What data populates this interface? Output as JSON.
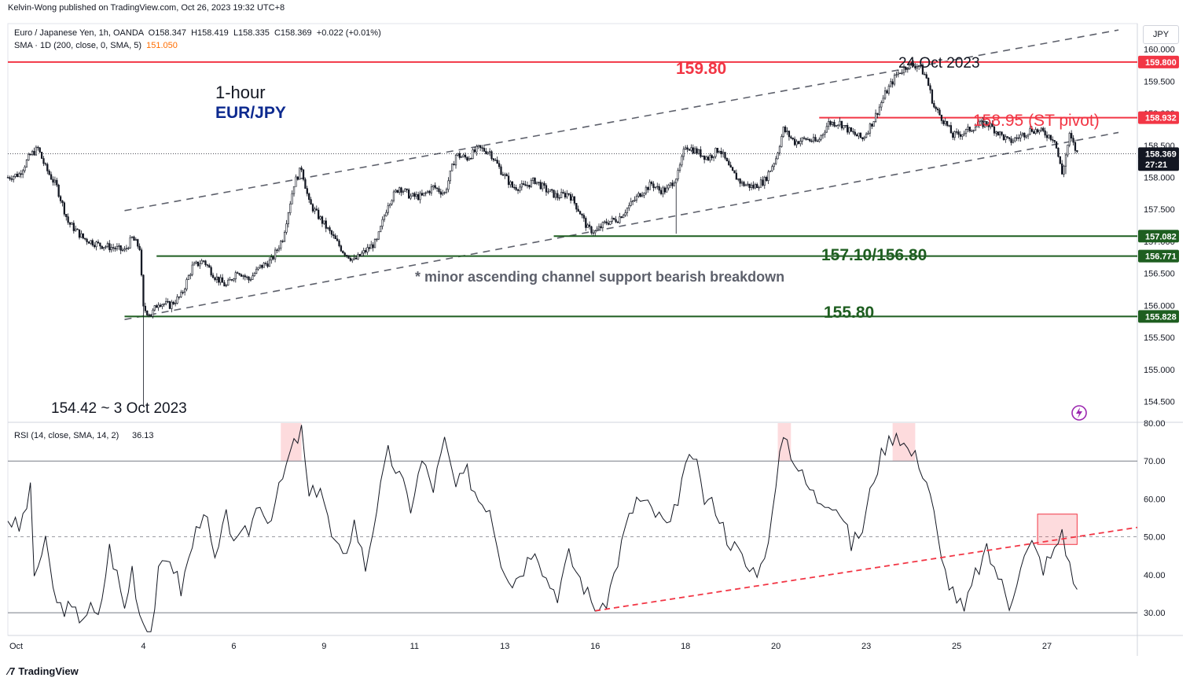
{
  "header": {
    "publisher": "Kelvin-Wong published on TradingView.com, Oct 26, 2023 19:32 UTC+8"
  },
  "legend": {
    "instrument": "Euro / Japanese Yen, 1h, OANDA",
    "open": "O158.347",
    "high": "H158.419",
    "low": "L158.335",
    "close": "C158.369",
    "change": "+0.022 (+0.01%)",
    "sma_label": "SMA · 1D (200, close, 0, SMA, 5)",
    "sma_value": "151.050",
    "rsi_label": "RSI (14, close, SMA, 14, 2)",
    "rsi_value": "36.13"
  },
  "currency": "JPY",
  "footer": {
    "brand": "TradingView"
  },
  "annotations": {
    "timeframe": "1-hour",
    "pair": "EUR/JPY",
    "top_level": "159.80",
    "top_date": "24 Oct 2023",
    "pivot": "158.95 (ST pivot)",
    "support_mid": "157.10/156.80",
    "note": "* minor ascending channel support bearish breakdown",
    "support_low": "155.80",
    "bottom": "154.42 ~ 3 Oct 2023"
  },
  "price_axis": {
    "ticks": [
      "160.000",
      "159.500",
      "159.000",
      "158.500",
      "158.000",
      "157.500",
      "157.000",
      "156.500",
      "156.000",
      "155.500",
      "155.000",
      "154.500"
    ],
    "tick_values": [
      160.0,
      159.5,
      159.0,
      158.5,
      158.0,
      157.5,
      157.0,
      156.5,
      156.0,
      155.5,
      155.0,
      154.5
    ],
    "badges": [
      {
        "label": "159.800",
        "value": 159.8,
        "color": "#f23645"
      },
      {
        "label": "158.932",
        "value": 158.932,
        "color": "#f23645"
      },
      {
        "label": "158.369",
        "value": 158.369,
        "color": "#131722"
      },
      {
        "label": "27:21",
        "value": 158.2,
        "color": "#131722"
      },
      {
        "label": "157.082",
        "value": 157.082,
        "color": "#1e5e20"
      },
      {
        "label": "156.771",
        "value": 156.771,
        "color": "#1e5e20"
      },
      {
        "label": "155.828",
        "value": 155.828,
        "color": "#1e5e20"
      }
    ]
  },
  "rsi_axis": {
    "ticks": [
      "80.00",
      "70.00",
      "60.00",
      "50.00",
      "40.00",
      "30.00"
    ],
    "tick_values": [
      80,
      70,
      60,
      50,
      40,
      30
    ]
  },
  "time_axis": {
    "labels": [
      "Oct",
      "4",
      "6",
      "9",
      "11",
      "13",
      "16",
      "18",
      "20",
      "23",
      "25",
      "27"
    ],
    "hours": [
      0,
      72,
      120,
      168,
      216,
      264,
      312,
      360,
      408,
      456,
      504,
      552
    ]
  },
  "colors": {
    "resistance": "#f23645",
    "support": "#1e5e20",
    "text_blue": "#0d2a8f",
    "channel": "#5d606b",
    "rsi_line": "#131722",
    "rsi_trend": "#f23645"
  },
  "chart_data": {
    "type": "candlestick",
    "symbol": "EUR/JPY",
    "interval": "1h",
    "x_unit": "hours since Oct 2 2023 00:00",
    "price_ylim": [
      154.2,
      160.4
    ],
    "rsi_ylim": [
      24,
      80
    ],
    "close_path": [
      [
        0,
        158.0
      ],
      [
        6,
        158.05
      ],
      [
        12,
        158.35
      ],
      [
        16,
        158.45
      ],
      [
        20,
        158.15
      ],
      [
        26,
        157.85
      ],
      [
        32,
        157.3
      ],
      [
        40,
        157.05
      ],
      [
        48,
        156.95
      ],
      [
        56,
        156.9
      ],
      [
        62,
        156.85
      ],
      [
        66,
        157.05
      ],
      [
        70,
        156.9
      ],
      [
        72,
        155.95
      ],
      [
        76,
        155.85
      ],
      [
        80,
        156.05
      ],
      [
        86,
        156.0
      ],
      [
        92,
        156.15
      ],
      [
        98,
        156.6
      ],
      [
        104,
        156.7
      ],
      [
        110,
        156.45
      ],
      [
        116,
        156.3
      ],
      [
        122,
        156.55
      ],
      [
        128,
        156.4
      ],
      [
        134,
        156.6
      ],
      [
        140,
        156.7
      ],
      [
        146,
        157.05
      ],
      [
        152,
        157.9
      ],
      [
        156,
        158.15
      ],
      [
        160,
        157.6
      ],
      [
        166,
        157.35
      ],
      [
        172,
        157.1
      ],
      [
        178,
        156.85
      ],
      [
        184,
        156.7
      ],
      [
        190,
        156.85
      ],
      [
        196,
        157.0
      ],
      [
        202,
        157.6
      ],
      [
        208,
        157.85
      ],
      [
        214,
        157.7
      ],
      [
        220,
        157.7
      ],
      [
        226,
        157.85
      ],
      [
        232,
        157.75
      ],
      [
        238,
        158.35
      ],
      [
        244,
        158.3
      ],
      [
        250,
        158.45
      ],
      [
        256,
        158.4
      ],
      [
        262,
        158.1
      ],
      [
        268,
        157.85
      ],
      [
        274,
        157.85
      ],
      [
        280,
        157.95
      ],
      [
        286,
        157.8
      ],
      [
        292,
        157.7
      ],
      [
        298,
        157.75
      ],
      [
        304,
        157.45
      ],
      [
        308,
        157.2
      ],
      [
        312,
        157.15
      ],
      [
        318,
        157.3
      ],
      [
        324,
        157.35
      ],
      [
        330,
        157.55
      ],
      [
        336,
        157.75
      ],
      [
        342,
        157.9
      ],
      [
        346,
        157.8
      ],
      [
        350,
        157.8
      ],
      [
        356,
        158.05
      ],
      [
        360,
        158.5
      ],
      [
        366,
        158.4
      ],
      [
        372,
        158.3
      ],
      [
        378,
        158.45
      ],
      [
        384,
        158.1
      ],
      [
        390,
        157.9
      ],
      [
        396,
        157.85
      ],
      [
        402,
        157.95
      ],
      [
        408,
        158.3
      ],
      [
        412,
        158.75
      ],
      [
        418,
        158.55
      ],
      [
        424,
        158.6
      ],
      [
        430,
        158.55
      ],
      [
        436,
        158.85
      ],
      [
        442,
        158.85
      ],
      [
        448,
        158.7
      ],
      [
        454,
        158.6
      ],
      [
        460,
        158.9
      ],
      [
        466,
        159.3
      ],
      [
        472,
        159.6
      ],
      [
        478,
        159.75
      ],
      [
        484,
        159.75
      ],
      [
        488,
        159.55
      ],
      [
        492,
        159.1
      ],
      [
        498,
        158.85
      ],
      [
        502,
        158.65
      ],
      [
        508,
        158.7
      ],
      [
        514,
        158.8
      ],
      [
        520,
        158.85
      ],
      [
        526,
        158.7
      ],
      [
        532,
        158.55
      ],
      [
        538,
        158.65
      ],
      [
        544,
        158.75
      ],
      [
        550,
        158.7
      ],
      [
        556,
        158.6
      ],
      [
        560,
        158.05
      ],
      [
        564,
        158.65
      ],
      [
        568,
        158.37
      ]
    ],
    "key_points": [
      {
        "label": "154.42 ~ 3 Oct 2023",
        "x": 72,
        "y": 154.42
      },
      {
        "label": "24 Oct 2023",
        "x": 486,
        "y": 159.84
      }
    ],
    "horizontal_levels": [
      {
        "label": "159.80",
        "y": 159.8,
        "x_from": 0,
        "x_to": 590,
        "color": "#f23645"
      },
      {
        "label": "158.95 (ST pivot)",
        "y": 158.932,
        "x_from": 431,
        "x_to": 590,
        "color": "#f23645"
      },
      {
        "label": "157.10",
        "y": 157.082,
        "x_from": 290,
        "x_to": 590,
        "color": "#1e5e20"
      },
      {
        "label": "156.80",
        "y": 156.771,
        "x_from": 79,
        "x_to": 590,
        "color": "#1e5e20"
      },
      {
        "label": "155.80",
        "y": 155.828,
        "x_from": 62,
        "x_to": 590,
        "color": "#1e5e20"
      }
    ],
    "channel": {
      "upper": [
        [
          62,
          157.48
        ],
        [
          590,
          160.3
        ]
      ],
      "lower": [
        [
          62,
          155.78
        ],
        [
          590,
          158.7
        ]
      ]
    },
    "rsi_path": [
      [
        0,
        55
      ],
      [
        6,
        52
      ],
      [
        12,
        62
      ],
      [
        14,
        40
      ],
      [
        20,
        48
      ],
      [
        26,
        32
      ],
      [
        32,
        31
      ],
      [
        38,
        29
      ],
      [
        44,
        31
      ],
      [
        48,
        28
      ],
      [
        54,
        47
      ],
      [
        58,
        40
      ],
      [
        62,
        31
      ],
      [
        66,
        42
      ],
      [
        70,
        30
      ],
      [
        72,
        28
      ],
      [
        76,
        25
      ],
      [
        80,
        40
      ],
      [
        86,
        45
      ],
      [
        92,
        36
      ],
      [
        98,
        48
      ],
      [
        104,
        58
      ],
      [
        110,
        43
      ],
      [
        116,
        55
      ],
      [
        122,
        48
      ],
      [
        128,
        52
      ],
      [
        134,
        60
      ],
      [
        138,
        54
      ],
      [
        144,
        62
      ],
      [
        150,
        72
      ],
      [
        156,
        78
      ],
      [
        160,
        60
      ],
      [
        166,
        64
      ],
      [
        172,
        50
      ],
      [
        178,
        44
      ],
      [
        184,
        54
      ],
      [
        190,
        42
      ],
      [
        196,
        58
      ],
      [
        202,
        72
      ],
      [
        208,
        66
      ],
      [
        214,
        58
      ],
      [
        220,
        70
      ],
      [
        226,
        63
      ],
      [
        232,
        75
      ],
      [
        238,
        63
      ],
      [
        244,
        67
      ],
      [
        250,
        60
      ],
      [
        256,
        58
      ],
      [
        262,
        44
      ],
      [
        268,
        38
      ],
      [
        274,
        42
      ],
      [
        280,
        48
      ],
      [
        286,
        39
      ],
      [
        292,
        35
      ],
      [
        298,
        45
      ],
      [
        304,
        39
      ],
      [
        310,
        33
      ],
      [
        316,
        30
      ],
      [
        322,
        40
      ],
      [
        328,
        52
      ],
      [
        334,
        60
      ],
      [
        340,
        58
      ],
      [
        346,
        55
      ],
      [
        352,
        52
      ],
      [
        358,
        65
      ],
      [
        364,
        72
      ],
      [
        370,
        60
      ],
      [
        376,
        58
      ],
      [
        382,
        50
      ],
      [
        388,
        46
      ],
      [
        394,
        41
      ],
      [
        400,
        42
      ],
      [
        406,
        55
      ],
      [
        412,
        78
      ],
      [
        418,
        70
      ],
      [
        424,
        64
      ],
      [
        430,
        60
      ],
      [
        436,
        60
      ],
      [
        442,
        57
      ],
      [
        448,
        48
      ],
      [
        454,
        52
      ],
      [
        460,
        66
      ],
      [
        466,
        74
      ],
      [
        472,
        78
      ],
      [
        478,
        73
      ],
      [
        484,
        70
      ],
      [
        490,
        62
      ],
      [
        496,
        43
      ],
      [
        502,
        36
      ],
      [
        508,
        30
      ],
      [
        514,
        40
      ],
      [
        520,
        46
      ],
      [
        526,
        40
      ],
      [
        532,
        32
      ],
      [
        538,
        43
      ],
      [
        544,
        48
      ],
      [
        550,
        42
      ],
      [
        556,
        46
      ],
      [
        560,
        52
      ],
      [
        564,
        42
      ],
      [
        568,
        36.13
      ]
    ],
    "rsi_levels": [
      70,
      50,
      30
    ],
    "rsi_trendline": [
      [
        312,
        30.5
      ],
      [
        600,
        52.5
      ]
    ],
    "rsi_highlight": {
      "x_from": 547,
      "x_to": 568,
      "y_from": 48,
      "y_to": 56
    },
    "overbought_shading": [
      [
        145,
        156
      ],
      [
        409,
        416
      ],
      [
        470,
        482
      ]
    ]
  }
}
